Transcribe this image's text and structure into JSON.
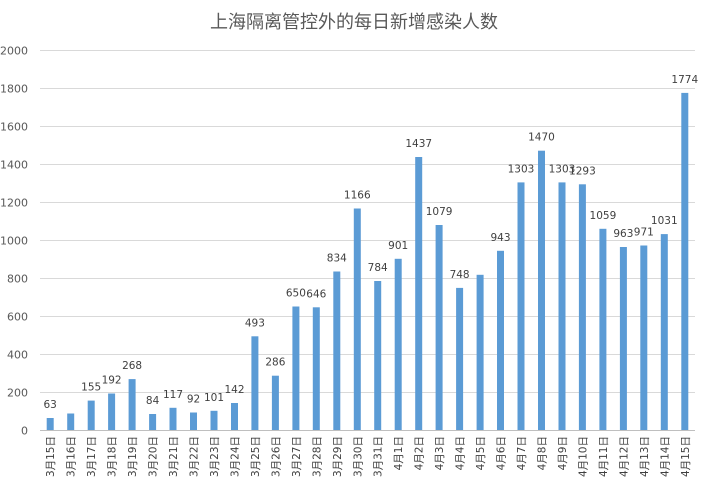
{
  "chart_data": {
    "type": "bar",
    "title": "上海隔离管控外的每日新增感染人数",
    "xlabel": "",
    "ylabel": "",
    "ylim": [
      0,
      2000
    ],
    "yticks": [
      0,
      200,
      400,
      600,
      800,
      1000,
      1200,
      1400,
      1600,
      1800,
      2000
    ],
    "grid": true,
    "legend": "none",
    "color": "#5B9BD5",
    "categories": [
      "3月15日",
      "3月16日",
      "3月17日",
      "3月18日",
      "3月19日",
      "3月20日",
      "3月21日",
      "3月22日",
      "3月23日",
      "3月24日",
      "3月25日",
      "3月26日",
      "3月27日",
      "3月28日",
      "3月29日",
      "3月30日",
      "3月31日",
      "4月1日",
      "4月2日",
      "4月3日",
      "4月4日",
      "4月5日",
      "4月6日",
      "4月7日",
      "4月8日",
      "4月9日",
      "4月10日",
      "4月11日",
      "4月12日",
      "4月13日",
      "4月14日",
      "4月15日"
    ],
    "values": [
      63,
      87,
      155,
      192,
      268,
      84,
      117,
      92,
      101,
      142,
      493,
      286,
      650,
      646,
      834,
      1166,
      784,
      901,
      1437,
      1079,
      748,
      817,
      943,
      1303,
      1470,
      1303,
      1293,
      1059,
      963,
      971,
      1031,
      1774
    ],
    "data_labels": [
      "63",
      "",
      "155",
      "192",
      "268",
      "84",
      "117",
      "92",
      "101",
      "142",
      "493",
      "286",
      "650",
      "646",
      "834",
      "1166",
      "784",
      "901",
      "1437",
      "1079",
      "748",
      "",
      "943",
      "1303",
      "1470",
      "1303",
      "1293",
      "1059",
      "963",
      "971",
      "1031",
      "1774"
    ]
  }
}
